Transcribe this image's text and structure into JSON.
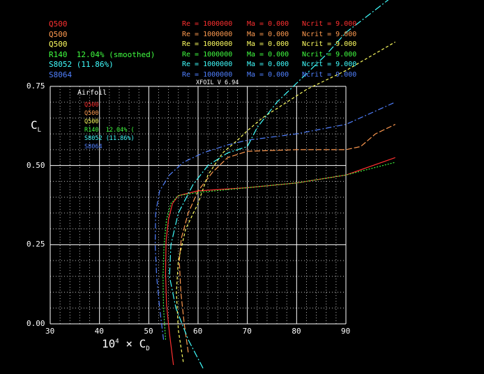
{
  "chart_data": {
    "type": "line",
    "title": "XFOIL V 6.94",
    "xlabel": "10⁴ × C_D",
    "ylabel": "C_L",
    "xlim": [
      30,
      90
    ],
    "ylim": [
      0,
      0.75
    ],
    "x_ticks": [
      "30",
      "40",
      "50",
      "60",
      "70",
      "80",
      "90"
    ],
    "y_ticks": [
      "0.00",
      "0.25",
      "0.50",
      "0.75"
    ],
    "grid": true,
    "legend_title": "Airfoil",
    "legend_position": "top-left",
    "run_conditions": [
      {
        "airfoil": "Q500",
        "re": "Re = 1000000",
        "ma": "Ma = 0.000",
        "ncrit": "Ncrit = 9.000",
        "color": "#ff3030"
      },
      {
        "airfoil": "Q500",
        "re": "Re = 1000000",
        "ma": "Ma = 0.000",
        "ncrit": "Ncrit = 9.000",
        "color": "#ff9a50"
      },
      {
        "airfoil": "Q500",
        "re": "Re = 1000000",
        "ma": "Ma = 0.000",
        "ncrit": "Ncrit = 9.000",
        "color": "#ffff60"
      },
      {
        "airfoil": "R140  12.04% (smoothed)",
        "re": "Re = 1000000",
        "ma": "Ma = 0.000",
        "ncrit": "Ncrit = 9.000",
        "color": "#40ff40"
      },
      {
        "airfoil": "S8052 (11.86%)",
        "re": "Re = 1000000",
        "ma": "Ma = 0.000",
        "ncrit": "Ncrit = 9.000",
        "color": "#40ffff"
      },
      {
        "airfoil": "S8064",
        "re": "Re = 1000000",
        "ma": "Ma = 0.000",
        "ncrit": "Ncrit = 9.000",
        "color": "#5080ff"
      }
    ],
    "legend_entries": [
      {
        "name": "Q500",
        "color": "#ff3030"
      },
      {
        "name": "Q500",
        "color": "#ff9a50"
      },
      {
        "name": "Q500",
        "color": "#ffff60"
      },
      {
        "name": "R140  12.04% (",
        "color": "#40ff40"
      },
      {
        "name": "S8052 (11.86%)",
        "color": "#40ffff"
      },
      {
        "name": "S8064",
        "color": "#5080ff"
      }
    ],
    "series": [
      {
        "color": "#ff3030",
        "dash": "solid",
        "cd": [
          55,
          54.2,
          53.6,
          53.4,
          53.5,
          54.0,
          54.8,
          56,
          60,
          70,
          80,
          90,
          100
        ],
        "cl": [
          -0.13,
          -0.03,
          0.06,
          0.16,
          0.26,
          0.33,
          0.38,
          0.405,
          0.42,
          0.43,
          0.445,
          0.47,
          0.525
        ]
      },
      {
        "color": "#ff9a50",
        "dash": "8,3",
        "cd": [
          58,
          57.2,
          56.5,
          56.2,
          56.6,
          58,
          60,
          63,
          66,
          70,
          80,
          90,
          93,
          96,
          100
        ],
        "cl": [
          -0.09,
          0.0,
          0.1,
          0.2,
          0.27,
          0.35,
          0.42,
          0.48,
          0.525,
          0.545,
          0.55,
          0.55,
          0.56,
          0.6,
          0.63
        ]
      },
      {
        "color": "#ffff60",
        "dash": "4,3",
        "cd": [
          57,
          56,
          55.6,
          56,
          57.5,
          60,
          62,
          65,
          68,
          70,
          73,
          78,
          82,
          90,
          100
        ],
        "cl": [
          -0.12,
          -0.02,
          0.1,
          0.2,
          0.3,
          0.38,
          0.47,
          0.54,
          0.58,
          0.61,
          0.65,
          0.7,
          0.74,
          0.8,
          0.89
        ]
      },
      {
        "color": "#40ff40",
        "dash": "2,2",
        "cd": [
          53.4,
          53.0,
          52.9,
          53.1,
          53.6,
          54.5,
          56,
          60,
          70,
          80,
          90,
          100
        ],
        "cl": [
          -0.05,
          0.05,
          0.15,
          0.25,
          0.33,
          0.38,
          0.405,
          0.415,
          0.43,
          0.445,
          0.47,
          0.51
        ]
      },
      {
        "color": "#40ffff",
        "dash": "10,3,2,3",
        "cd": [
          61,
          58,
          55.5,
          54.2,
          54.5,
          56,
          59,
          62,
          66,
          70,
          72,
          76,
          80,
          86,
          90,
          100
        ],
        "cl": [
          -0.14,
          -0.05,
          0.05,
          0.15,
          0.25,
          0.35,
          0.44,
          0.5,
          0.54,
          0.56,
          0.62,
          0.7,
          0.76,
          0.85,
          0.92,
          1.04
        ]
      },
      {
        "color": "#5080ff",
        "dash": "8,3,2,3",
        "cd": [
          53,
          52.2,
          51.6,
          51.3,
          51.4,
          52.2,
          54.2,
          57,
          61,
          66,
          70,
          80,
          90,
          100
        ],
        "cl": [
          -0.05,
          0.05,
          0.15,
          0.25,
          0.35,
          0.42,
          0.47,
          0.51,
          0.54,
          0.565,
          0.58,
          0.6,
          0.63,
          0.7
        ]
      }
    ]
  }
}
